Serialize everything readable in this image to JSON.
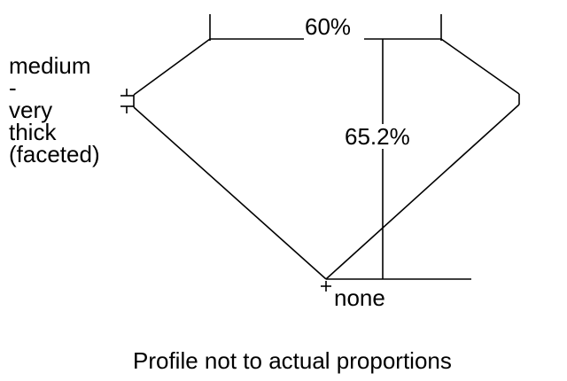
{
  "diagram": {
    "table_percent": "60%",
    "total_depth_percent": "65.2%",
    "culet_label": "none",
    "girdle_label_lines": [
      "medium",
      "-",
      "very",
      "thick",
      "(faceted)"
    ],
    "footer_note": "Profile not to actual proportions",
    "line_color": "#000000"
  }
}
